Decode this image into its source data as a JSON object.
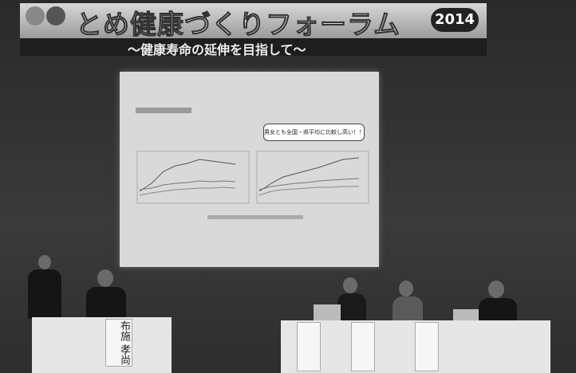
{
  "banner": {
    "title": "とめ健康づくりフォーラム",
    "year": "2014",
    "subtitle": "～健康寿命の延伸を目指して～"
  },
  "slide": {
    "callout": "男女とも全国・県平均に比較し高い！！"
  },
  "placards": [
    {
      "name": "布施 孝尚"
    }
  ]
}
